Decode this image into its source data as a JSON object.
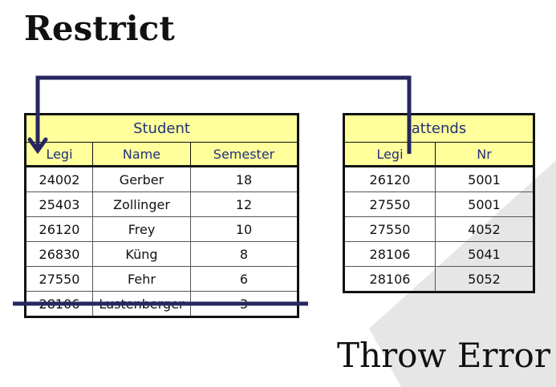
{
  "title": "Restrict",
  "student": {
    "caption": "Student",
    "columns": [
      "Legi",
      "Name",
      "Semester"
    ],
    "rows": [
      [
        "24002",
        "Gerber",
        "18"
      ],
      [
        "25403",
        "Zollinger",
        "12"
      ],
      [
        "26120",
        "Frey",
        "10"
      ],
      [
        "26830",
        "Küng",
        "8"
      ],
      [
        "27550",
        "Fehr",
        "6"
      ],
      [
        "28106",
        "Lustenberger",
        "3"
      ]
    ]
  },
  "attends": {
    "caption": "attends",
    "columns": [
      "Legi",
      "Nr"
    ],
    "rows": [
      [
        "26120",
        "5001"
      ],
      [
        "27550",
        "5001"
      ],
      [
        "27550",
        "4052"
      ],
      [
        "28106",
        "5041"
      ],
      [
        "28106",
        "5052"
      ]
    ]
  },
  "footer_text": "Throw Error",
  "colors": {
    "arrow": "#262660",
    "header_bg": "#ffff9c",
    "header_text": "#22307a",
    "background_shape": "#e6e6e6"
  }
}
